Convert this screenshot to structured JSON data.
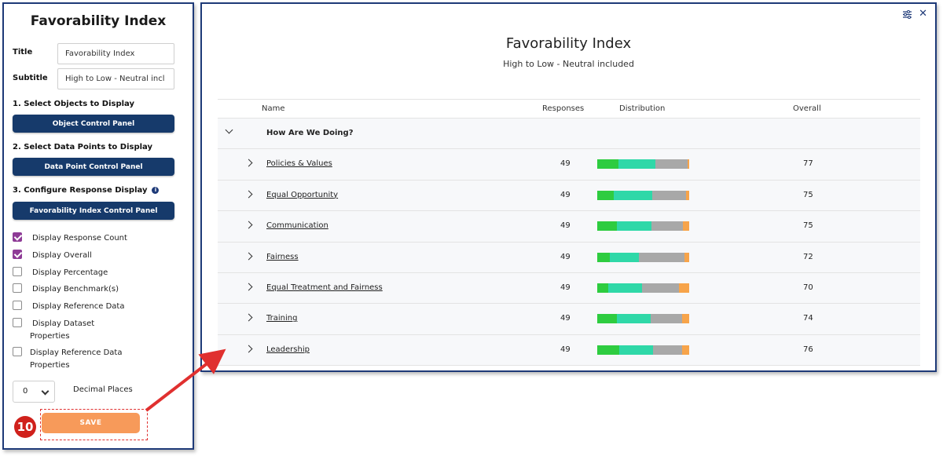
{
  "left_panel": {
    "heading": "Favorability Index",
    "title_label": "Title",
    "title_value": "Favorability Index",
    "subtitle_label": "Subtitle",
    "subtitle_value": "High to Low - Neutral incl",
    "section1_label": "1. Select Objects to Display",
    "section1_button": "Object Control Panel",
    "section2_label": "2. Select Data Points to Display",
    "section2_button": "Data Point Control Panel",
    "section3_label": "3. Configure Response Display",
    "section3_button": "Favorability Index Control Panel",
    "checkboxes": [
      {
        "label": "Display Response Count",
        "checked": true
      },
      {
        "label": "Display Overall",
        "checked": true
      },
      {
        "label": "Display Percentage",
        "checked": false
      },
      {
        "label": "Display Benchmark(s)",
        "checked": false
      },
      {
        "label": "Display Reference Data",
        "checked": false
      },
      {
        "label": "Display Dataset",
        "label2": "Properties",
        "checked": false
      },
      {
        "label": "Display Reference Data",
        "label2": "Properties",
        "checked": false
      }
    ],
    "decimal_value": "0",
    "decimal_label": "Decimal Places",
    "save_label": "SAVE",
    "step_number": "10"
  },
  "chart_panel": {
    "title": "Favorability Index",
    "subtitle": "High to Low - Neutral included",
    "columns": {
      "name": "Name",
      "responses": "Responses",
      "distribution": "Distribution",
      "overall": "Overall"
    },
    "group": "How Are We Doing?",
    "distribution_colors": [
      "#2ecc40",
      "#2fd8a8",
      "#a8a8a8",
      "#f7a44a"
    ],
    "rows": [
      {
        "name": "Policies & Values",
        "responses": "49",
        "overall": "77",
        "dist": [
          0.23,
          0.4,
          0.35,
          0.02
        ]
      },
      {
        "name": "Equal Opportunity",
        "responses": "49",
        "overall": "75",
        "dist": [
          0.18,
          0.42,
          0.37,
          0.03
        ]
      },
      {
        "name": "Communication",
        "responses": "49",
        "overall": "75",
        "dist": [
          0.21,
          0.38,
          0.34,
          0.07
        ]
      },
      {
        "name": "Fairness",
        "responses": "49",
        "overall": "72",
        "dist": [
          0.14,
          0.31,
          0.5,
          0.05
        ]
      },
      {
        "name": "Equal Treatment and Fairness",
        "responses": "49",
        "overall": "70",
        "dist": [
          0.12,
          0.37,
          0.4,
          0.11
        ]
      },
      {
        "name": "Training",
        "responses": "49",
        "overall": "74",
        "dist": [
          0.21,
          0.37,
          0.34,
          0.08
        ]
      },
      {
        "name": "Leadership",
        "responses": "49",
        "overall": "76",
        "dist": [
          0.24,
          0.37,
          0.31,
          0.08
        ]
      }
    ]
  },
  "colors": {
    "panel_border": "#1e3a78",
    "control_button": "#163a6b",
    "save_button": "#f79a5a",
    "checkbox_checked": "#8e3b96",
    "annotation_red": "#e0302f"
  }
}
